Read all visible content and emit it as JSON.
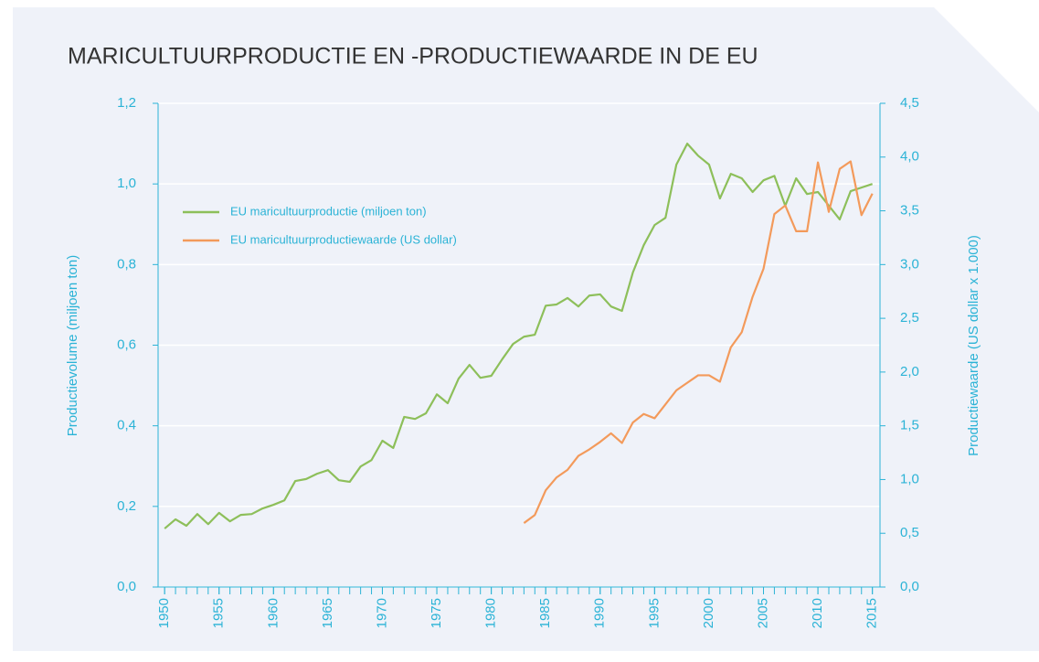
{
  "chart_data": {
    "type": "line",
    "title": "MARICULTUURPRODUCTIE EN -PRODUCTIEWAARDE IN DE EU",
    "ylabel": "Productievolume (miljoen ton)",
    "y2label": "Productiewaarde (US dollar x 1.000)",
    "x": [
      1950,
      1951,
      1952,
      1953,
      1954,
      1955,
      1956,
      1957,
      1958,
      1959,
      1960,
      1961,
      1962,
      1963,
      1964,
      1965,
      1966,
      1967,
      1968,
      1969,
      1970,
      1971,
      1972,
      1973,
      1974,
      1975,
      1976,
      1977,
      1978,
      1979,
      1980,
      1981,
      1982,
      1983,
      1984,
      1985,
      1986,
      1987,
      1988,
      1989,
      1990,
      1991,
      1992,
      1993,
      1994,
      1995,
      1996,
      1997,
      1998,
      1999,
      2000,
      2001,
      2002,
      2003,
      2004,
      2005,
      2006,
      2007,
      2008,
      2009,
      2010,
      2011,
      2012,
      2013,
      2014,
      2015
    ],
    "xlim": [
      1949.4,
      2015.7
    ],
    "xticks": [
      1950,
      1955,
      1960,
      1965,
      1970,
      1975,
      1980,
      1985,
      1990,
      1995,
      2000,
      2005,
      2010,
      2015
    ],
    "ylim": [
      0,
      1.2
    ],
    "yticks": [
      {
        "value": 0,
        "label": "0,0"
      },
      {
        "value": 0.2,
        "label": "0,2"
      },
      {
        "value": 0.4,
        "label": "0,4"
      },
      {
        "value": 0.6,
        "label": "0,6"
      },
      {
        "value": 0.8,
        "label": "0,8"
      },
      {
        "value": 1.0,
        "label": "1,0"
      },
      {
        "value": 1.2,
        "label": "1,2"
      }
    ],
    "y2lim": [
      0,
      4.5
    ],
    "y2ticks": [
      {
        "value": 0,
        "label": "0,0"
      },
      {
        "value": 0.5,
        "label": "0,5"
      },
      {
        "value": 1.0,
        "label": "1,0"
      },
      {
        "value": 1.5,
        "label": "1,5"
      },
      {
        "value": 2.0,
        "label": "2,0"
      },
      {
        "value": 2.5,
        "label": "2,5"
      },
      {
        "value": 3.0,
        "label": "3,0"
      },
      {
        "value": 3.5,
        "label": "3,5"
      },
      {
        "value": 4.0,
        "label": "4,0"
      },
      {
        "value": 4.5,
        "label": "4,5"
      }
    ],
    "grid": true,
    "legend": "upper left",
    "series": [
      {
        "name": "EU maricultuurproductie (miljoen ton)",
        "color": "#8dbf5a",
        "values": [
          0.145,
          0.168,
          0.152,
          0.181,
          0.156,
          0.184,
          0.163,
          0.179,
          0.181,
          0.195,
          0.204,
          0.215,
          0.263,
          0.268,
          0.281,
          0.29,
          0.265,
          0.261,
          0.299,
          0.315,
          0.363,
          0.345,
          0.422,
          0.417,
          0.431,
          0.478,
          0.456,
          0.517,
          0.551,
          0.519,
          0.524,
          0.565,
          0.603,
          0.621,
          0.626,
          0.698,
          0.701,
          0.717,
          0.696,
          0.723,
          0.726,
          0.696,
          0.685,
          0.78,
          0.848,
          0.898,
          0.916,
          1.048,
          1.1,
          1.07,
          1.048,
          0.964,
          1.025,
          1.014,
          0.98,
          1.009,
          1.02,
          0.946,
          1.014,
          0.975,
          0.98,
          0.946,
          0.912,
          0.982,
          0.991,
          1.0
        ]
      },
      {
        "name": "EU maricultuurproductiewaarde (US dollar)",
        "color": "#f39a5b",
        "axis": "y2",
        "values": [
          null,
          null,
          null,
          null,
          null,
          null,
          null,
          null,
          null,
          null,
          null,
          null,
          null,
          null,
          null,
          null,
          null,
          null,
          null,
          null,
          null,
          null,
          null,
          null,
          null,
          null,
          null,
          null,
          null,
          null,
          null,
          null,
          null,
          0.595,
          0.67,
          0.9,
          1.02,
          1.09,
          1.22,
          1.28,
          1.35,
          1.43,
          1.34,
          1.53,
          1.61,
          1.57,
          1.7,
          1.83,
          1.9,
          1.97,
          1.97,
          1.91,
          2.23,
          2.37,
          2.7,
          2.96,
          3.47,
          3.55,
          3.31,
          3.31,
          3.95,
          3.49,
          3.89,
          3.96,
          3.46,
          3.66
        ]
      }
    ]
  }
}
